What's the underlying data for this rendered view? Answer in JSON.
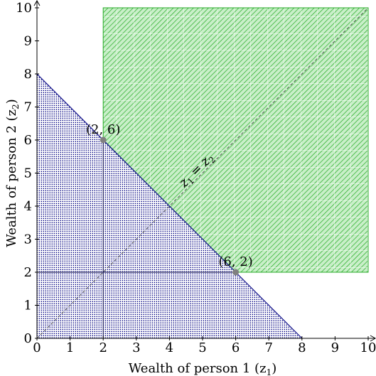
{
  "chart_data": {
    "type": "area",
    "xlabel": "Wealth of person 1 (z",
    "xlabel_sub": "1",
    "xlabel_close": ")",
    "ylabel": "Wealth of person 2 (z",
    "ylabel_sub": "2",
    "ylabel_close": ")",
    "xlim": [
      0,
      10
    ],
    "ylim": [
      0,
      10
    ],
    "xticks": [
      "0",
      "1",
      "2",
      "3",
      "4",
      "5",
      "6",
      "7",
      "8",
      "9",
      "10"
    ],
    "yticks": [
      "0",
      "1",
      "2",
      "3",
      "4",
      "5",
      "6",
      "7",
      "8",
      "9",
      "10"
    ],
    "grid": false,
    "regions": [
      {
        "kind": "dotted-triangle",
        "color": "#000080",
        "polygon": [
          [
            0,
            0
          ],
          [
            8,
            0
          ],
          [
            0,
            8
          ]
        ]
      },
      {
        "kind": "hatched-green",
        "color": "#22aa22",
        "fill": "#b6ebb6",
        "polygon": [
          [
            2,
            10
          ],
          [
            10,
            10
          ],
          [
            10,
            2
          ],
          [
            6,
            2
          ],
          [
            2,
            6
          ]
        ]
      }
    ],
    "budget_line": {
      "from": [
        0,
        8
      ],
      "to": [
        8,
        0
      ]
    },
    "diagonal": {
      "from": [
        0,
        0
      ],
      "to": [
        10,
        10
      ],
      "style": "dashed",
      "label": "z1 = z2"
    },
    "guides": [
      {
        "from": [
          2,
          0
        ],
        "to": [
          2,
          6
        ]
      },
      {
        "from": [
          0,
          2
        ],
        "to": [
          6,
          2
        ]
      }
    ],
    "points": [
      {
        "x": 2,
        "y": 6,
        "label": "(2, 6)"
      },
      {
        "x": 6,
        "y": 2,
        "label": "(6, 2)"
      }
    ],
    "diagonal_label": {
      "var": "z",
      "sub1": "1",
      "eq": "=",
      "sub2": "2"
    }
  }
}
